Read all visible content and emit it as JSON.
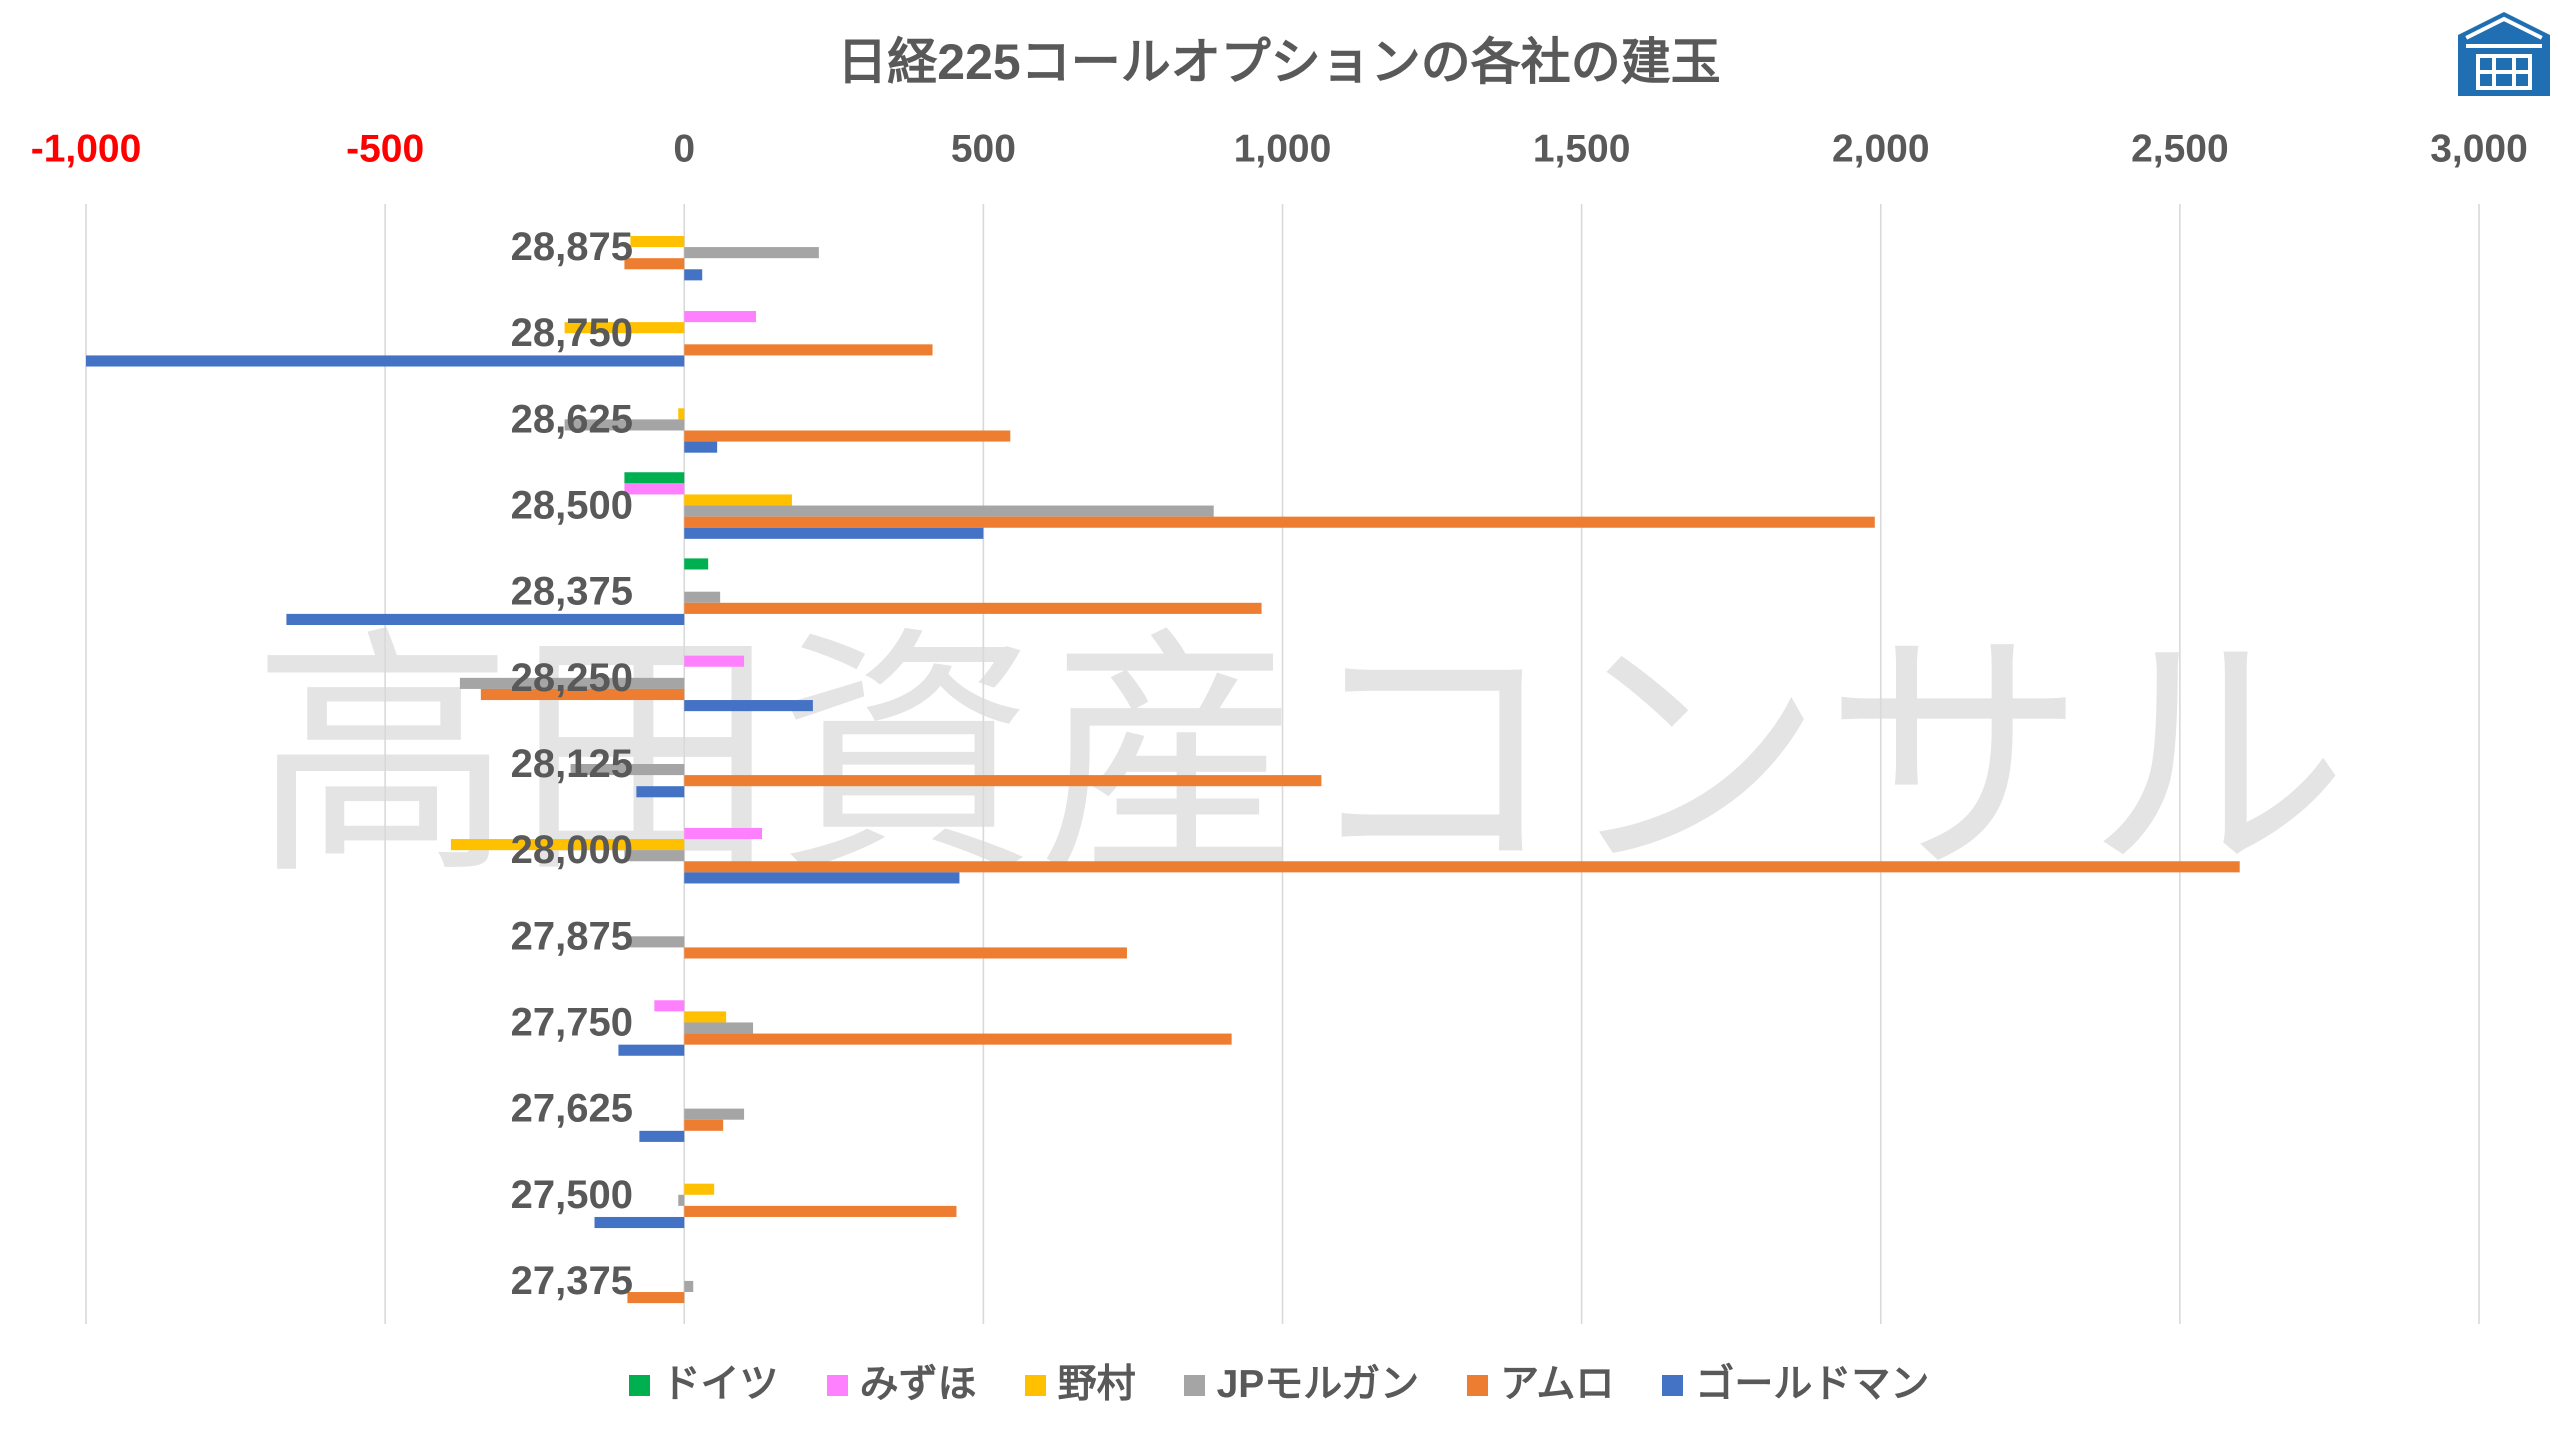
{
  "chart_data": {
    "type": "bar",
    "orientation": "horizontal",
    "title": "日経225コールオプションの各社の建玉",
    "categories": [
      "28,875",
      "28,750",
      "28,625",
      "28,500",
      "28,375",
      "28,250",
      "28,125",
      "28,000",
      "27,875",
      "27,750",
      "27,625",
      "27,500",
      "27,375"
    ],
    "series": [
      {
        "name": "ドイツ",
        "color": "#00B050",
        "values": [
          0,
          0,
          0,
          -100,
          40,
          0,
          0,
          0,
          0,
          0,
          0,
          0,
          0
        ]
      },
      {
        "name": "みずほ",
        "color": "#FF80FF",
        "values": [
          0,
          120,
          0,
          -100,
          0,
          100,
          0,
          130,
          0,
          -50,
          0,
          0,
          0
        ]
      },
      {
        "name": "野村",
        "color": "#FFC000",
        "values": [
          -90,
          -200,
          -10,
          180,
          0,
          0,
          0,
          -390,
          0,
          70,
          0,
          50,
          0
        ]
      },
      {
        "name": "JPモルガン",
        "color": "#A5A5A5",
        "values": [
          225,
          0,
          -200,
          885,
          60,
          -375,
          -190,
          -100,
          -95,
          115,
          100,
          -10,
          15
        ]
      },
      {
        "name": "アムロ",
        "color": "#ED7D31",
        "values": [
          -100,
          415,
          545,
          1990,
          965,
          -340,
          1065,
          2600,
          740,
          915,
          65,
          455,
          -95
        ]
      },
      {
        "name": "ゴールドマン",
        "color": "#4472C4",
        "values": [
          30,
          -1000,
          55,
          500,
          -665,
          215,
          -80,
          460,
          0,
          -110,
          -75,
          -150,
          0
        ]
      }
    ],
    "xlim": [
      -1000,
      3000
    ],
    "x_ticks": [
      {
        "value": -1000,
        "label": "-1,000"
      },
      {
        "value": -500,
        "label": "-500"
      },
      {
        "value": 0,
        "label": "0"
      },
      {
        "value": 500,
        "label": "500"
      },
      {
        "value": 1000,
        "label": "1,000"
      },
      {
        "value": 1500,
        "label": "1,500"
      },
      {
        "value": 2000,
        "label": "2,000"
      },
      {
        "value": 2500,
        "label": "2,500"
      },
      {
        "value": 3000,
        "label": "3,000"
      }
    ],
    "x_axis_position": "top",
    "grid": true,
    "legend": "bottom",
    "tick_colors": {
      "negative": "#FF0000",
      "default": "#595959"
    }
  },
  "watermark": "高田資産コンサル",
  "logo": {
    "icon": "house-logo-icon",
    "color": "#1F6FB2"
  }
}
